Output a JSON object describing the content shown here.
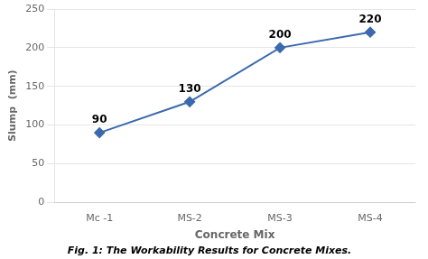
{
  "chart_data": {
    "type": "line",
    "caption": "Fig. 1: The Workability Results for Concrete Mixes.",
    "xlabel": "Concrete Mix",
    "ylabel": "Slump  (mm)",
    "categories": [
      "Mc -1",
      "MS-2",
      "MS-3",
      "MS-4"
    ],
    "values": [
      90,
      130,
      200,
      220
    ],
    "color": "#3a6aad",
    "marker": "diamond",
    "ylim": [
      0,
      250
    ],
    "yticks": [
      0,
      50,
      100,
      150,
      200,
      250
    ],
    "grid": true,
    "data_labels": true
  }
}
